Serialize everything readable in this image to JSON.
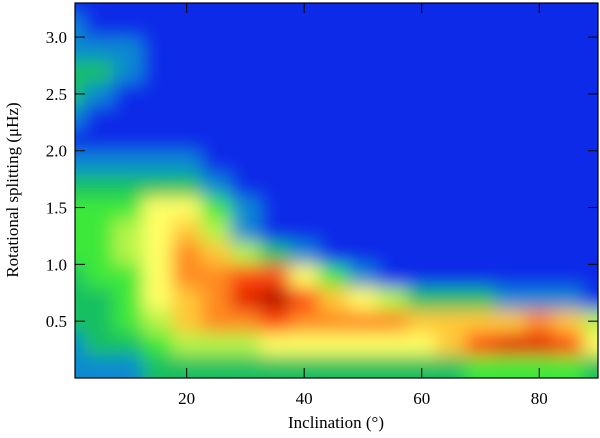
{
  "chart_data": {
    "type": "contour",
    "xlabel": "Inclination (°)",
    "ylabel": "Rotational splitting (μHz)",
    "xlim": [
      1,
      90
    ],
    "ylim": [
      0,
      3.3
    ],
    "xticks": [
      20,
      40,
      60,
      80
    ],
    "yticks": [
      0.5,
      {
        "value": 1.0,
        "label": "1.0"
      },
      1.5,
      {
        "value": 2.0,
        "label": "2.0"
      },
      2.5,
      {
        "value": 3.0,
        "label": "3.0"
      }
    ],
    "colors": [
      "#0a2ce8",
      "#0a8ad0",
      "#12c060",
      "#3ee83a",
      "#b4f448",
      "#ffff66",
      "#ffc838",
      "#ff8a22",
      "#ff4a0a",
      "#e41a00",
      "#b40a00"
    ],
    "x": [
      0,
      5,
      10,
      15,
      20,
      25,
      30,
      35,
      40,
      45,
      50,
      55,
      60,
      65,
      70,
      75,
      80,
      85,
      90
    ],
    "y": [
      0.1,
      0.3,
      0.5,
      0.7,
      0.9,
      1.1,
      1.3,
      1.5,
      1.7,
      1.9,
      2.1,
      2.3,
      2.5,
      2.7,
      2.9,
      3.1,
      3.3
    ],
    "z": [
      [
        1,
        1,
        1,
        2,
        2,
        2,
        2,
        2,
        2,
        2,
        2,
        2,
        2,
        2,
        3,
        3,
        3,
        3,
        2
      ],
      [
        1,
        2,
        2,
        3,
        4,
        4,
        4,
        5,
        5,
        5,
        5,
        5,
        5,
        6,
        8,
        9,
        9,
        8,
        5
      ],
      [
        2,
        2,
        3,
        4,
        6,
        7,
        7,
        8,
        7,
        7,
        7,
        7,
        6,
        6,
        6,
        6,
        7,
        6,
        4
      ],
      [
        2,
        2,
        3,
        5,
        6,
        7,
        9,
        10,
        8,
        6,
        5,
        4,
        2,
        2,
        2,
        1,
        1,
        1,
        0
      ],
      [
        2,
        3,
        3,
        5,
        7,
        7,
        8,
        8,
        5,
        3,
        1,
        0,
        0,
        0,
        0,
        0,
        0,
        0,
        0
      ],
      [
        3,
        3,
        4,
        5,
        7,
        6,
        4,
        2,
        1,
        0,
        0,
        0,
        0,
        0,
        0,
        0,
        0,
        0,
        0
      ],
      [
        3,
        3,
        4,
        5,
        6,
        4,
        1,
        0,
        0,
        0,
        0,
        0,
        0,
        0,
        0,
        0,
        0,
        0,
        0
      ],
      [
        3,
        3,
        3,
        5,
        5,
        3,
        1,
        0,
        0,
        0,
        0,
        0,
        0,
        0,
        0,
        0,
        0,
        0,
        0
      ],
      [
        2,
        2,
        2,
        2,
        2,
        1,
        0,
        0,
        0,
        0,
        0,
        0,
        0,
        0,
        0,
        0,
        0,
        0,
        0
      ],
      [
        1,
        1,
        1,
        1,
        1,
        0,
        0,
        0,
        0,
        0,
        0,
        0,
        0,
        0,
        0,
        0,
        0,
        0,
        0
      ],
      [
        0,
        0,
        0,
        0,
        0,
        0,
        0,
        0,
        0,
        0,
        0,
        0,
        0,
        0,
        0,
        0,
        0,
        0,
        0
      ],
      [
        1,
        0,
        0,
        0,
        0,
        0,
        0,
        0,
        0,
        0,
        0,
        0,
        0,
        0,
        0,
        0,
        0,
        0,
        0
      ],
      [
        2,
        1,
        0,
        0,
        0,
        0,
        0,
        0,
        0,
        0,
        0,
        0,
        0,
        0,
        0,
        0,
        0,
        0,
        0
      ],
      [
        2,
        2,
        1,
        0,
        0,
        0,
        0,
        0,
        0,
        0,
        0,
        0,
        0,
        0,
        0,
        0,
        0,
        0,
        0
      ],
      [
        1,
        1,
        1,
        0,
        0,
        0,
        0,
        0,
        0,
        0,
        0,
        0,
        0,
        0,
        0,
        0,
        0,
        0,
        0
      ],
      [
        1,
        0,
        0,
        0,
        0,
        0,
        0,
        0,
        0,
        0,
        0,
        0,
        0,
        0,
        0,
        0,
        0,
        0,
        0
      ],
      [
        0,
        0,
        0,
        0,
        0,
        0,
        0,
        0,
        0,
        0,
        0,
        0,
        0,
        0,
        0,
        0,
        0,
        0,
        0
      ]
    ]
  }
}
